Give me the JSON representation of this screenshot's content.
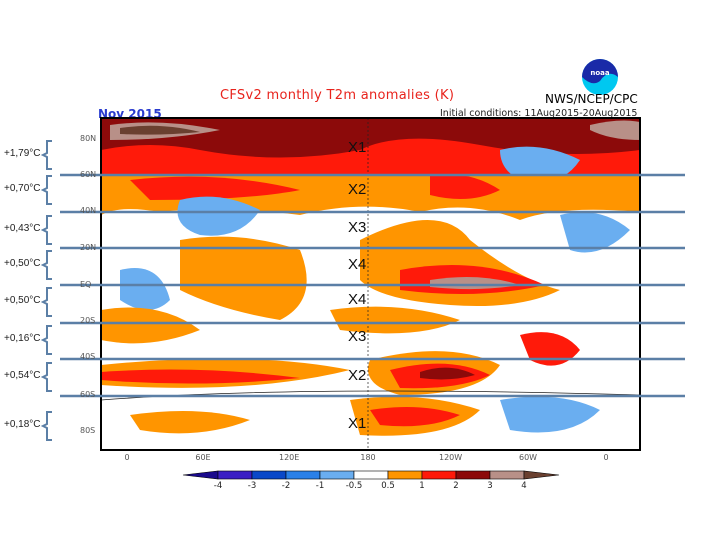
{
  "title": "CFSv2 monthly T2m anomalies (K)",
  "month_label": "Nov 2015",
  "initial_conditions": "Initial conditions: 11Aug2015-20Aug2015",
  "organization": "NWS/NCEP/CPC",
  "logo_text": "noaa",
  "lat_ticks": [
    "80N",
    "60N",
    "40N",
    "20N",
    "EQ",
    "20S",
    "40S",
    "60S",
    "80S"
  ],
  "lon_ticks": [
    "0",
    "60E",
    "120E",
    "180",
    "120W",
    "60W",
    "0"
  ],
  "band_annotations": [
    {
      "value": "+1,79°C",
      "marker": "X1"
    },
    {
      "value": "+0,70°C",
      "marker": "X2"
    },
    {
      "value": "+0,43°C",
      "marker": "X3"
    },
    {
      "value": "+0,50°C",
      "marker": "X4"
    },
    {
      "value": "+0,50°C",
      "marker": "X4"
    },
    {
      "value": "+0,16°C",
      "marker": "X3"
    },
    {
      "value": "+0,54°C",
      "marker": "X2"
    },
    {
      "value": "+0,18°C",
      "marker": "X1"
    }
  ],
  "colorbar": {
    "labels": [
      "-4",
      "-3",
      "-2",
      "-1",
      "-0.5",
      "0.5",
      "1",
      "2",
      "3",
      "4"
    ],
    "colors": [
      "#1a0a8c",
      "#3a1fc4",
      "#0a48c8",
      "#2a80e8",
      "#6aaef0",
      "#ffffff",
      "#ff9500",
      "#ff1a0a",
      "#8c0a0a",
      "#b89088",
      "#6a4030"
    ]
  },
  "colors": {
    "band_line": "#5b7fa6",
    "title": "#e8231c",
    "month": "#2a3ccf"
  }
}
